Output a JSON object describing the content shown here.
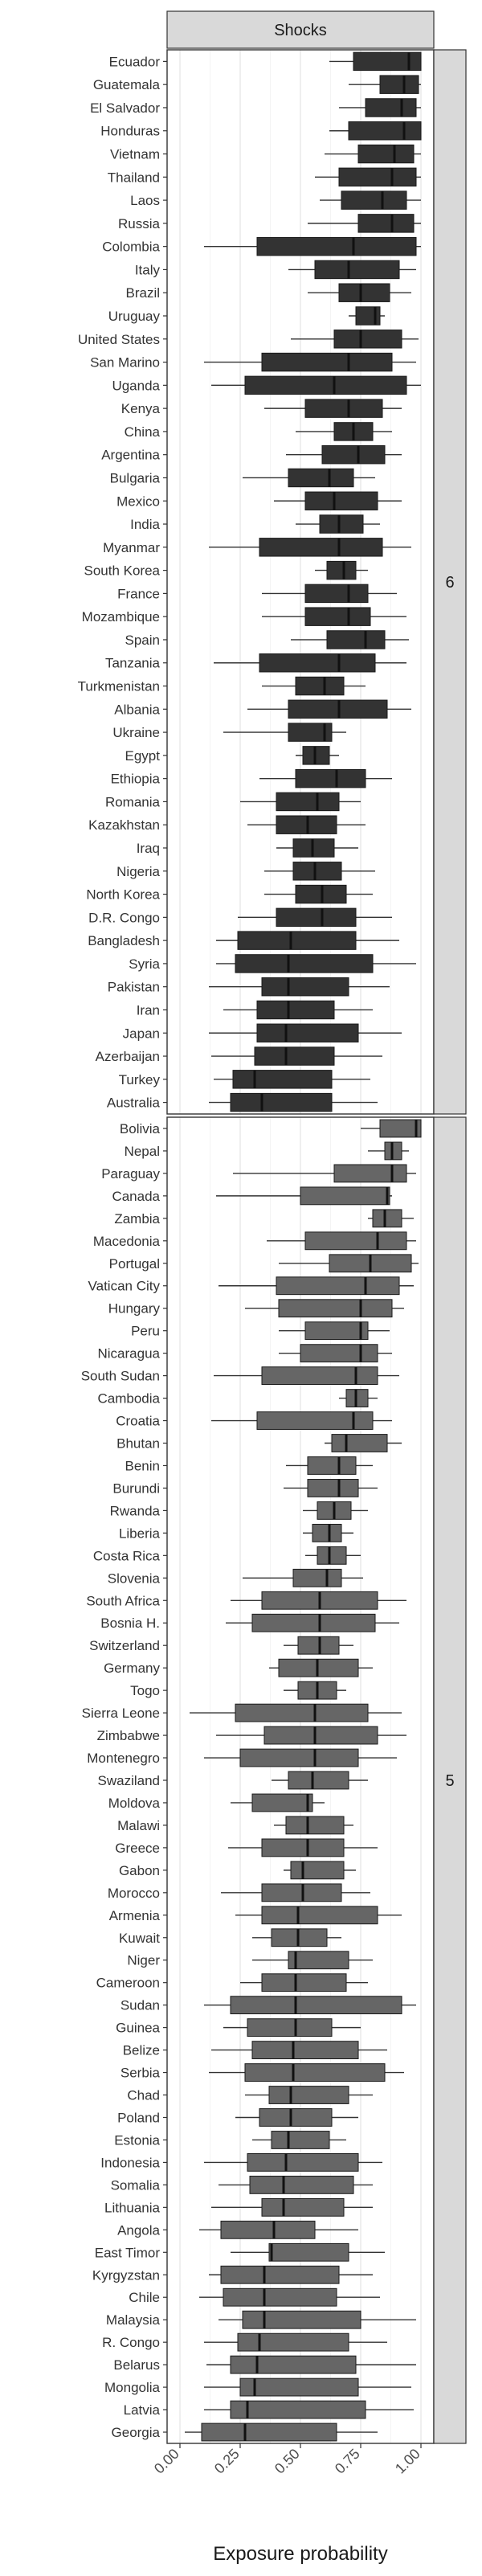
{
  "chart_data": {
    "type": "boxplot",
    "title": "",
    "facet_top_label": "Shocks",
    "xlabel": "Exposure probability",
    "ylabel": "",
    "xlim": [
      0,
      1
    ],
    "x_ticks": [
      "0.00",
      "0.25",
      "0.50",
      "0.75",
      "1.00"
    ],
    "grid": true,
    "colors": {
      "box_fill_group6": "#333333",
      "box_fill_group5": "#666666",
      "median": "#111111",
      "strip": "#d9d9d9",
      "grid": "#ebebeb"
    },
    "panels": [
      {
        "label": "6",
        "countries": [
          {
            "name": "Ecuador",
            "min": 0.62,
            "q1": 0.72,
            "median": 0.95,
            "q3": 1.0,
            "max": 1.0
          },
          {
            "name": "Guatemala",
            "min": 0.7,
            "q1": 0.83,
            "median": 0.93,
            "q3": 0.99,
            "max": 1.0
          },
          {
            "name": "El Salvador",
            "min": 0.66,
            "q1": 0.77,
            "median": 0.92,
            "q3": 0.98,
            "max": 1.0
          },
          {
            "name": "Honduras",
            "min": 0.62,
            "q1": 0.7,
            "median": 0.93,
            "q3": 1.0,
            "max": 1.0
          },
          {
            "name": "Vietnam",
            "min": 0.6,
            "q1": 0.74,
            "median": 0.89,
            "q3": 0.97,
            "max": 1.0
          },
          {
            "name": "Thailand",
            "min": 0.56,
            "q1": 0.66,
            "median": 0.88,
            "q3": 0.98,
            "max": 1.0
          },
          {
            "name": "Laos",
            "min": 0.58,
            "q1": 0.67,
            "median": 0.84,
            "q3": 0.94,
            "max": 1.0
          },
          {
            "name": "Russia",
            "min": 0.53,
            "q1": 0.74,
            "median": 0.88,
            "q3": 0.97,
            "max": 1.0
          },
          {
            "name": "Colombia",
            "min": 0.1,
            "q1": 0.32,
            "median": 0.72,
            "q3": 0.98,
            "max": 1.0
          },
          {
            "name": "Italy",
            "min": 0.45,
            "q1": 0.56,
            "median": 0.7,
            "q3": 0.91,
            "max": 0.98
          },
          {
            "name": "Brazil",
            "min": 0.53,
            "q1": 0.66,
            "median": 0.75,
            "q3": 0.87,
            "max": 0.96
          },
          {
            "name": "Uruguay",
            "min": 0.7,
            "q1": 0.73,
            "median": 0.81,
            "q3": 0.83,
            "max": 0.85
          },
          {
            "name": "United States",
            "min": 0.46,
            "q1": 0.64,
            "median": 0.75,
            "q3": 0.92,
            "max": 0.99
          },
          {
            "name": "San Marino",
            "min": 0.1,
            "q1": 0.34,
            "median": 0.7,
            "q3": 0.88,
            "max": 0.98
          },
          {
            "name": "Uganda",
            "min": 0.13,
            "q1": 0.27,
            "median": 0.64,
            "q3": 0.94,
            "max": 1.0
          },
          {
            "name": "Kenya",
            "min": 0.35,
            "q1": 0.52,
            "median": 0.7,
            "q3": 0.84,
            "max": 0.92
          },
          {
            "name": "China",
            "min": 0.48,
            "q1": 0.64,
            "median": 0.72,
            "q3": 0.8,
            "max": 0.88
          },
          {
            "name": "Argentina",
            "min": 0.44,
            "q1": 0.59,
            "median": 0.74,
            "q3": 0.85,
            "max": 0.92
          },
          {
            "name": "Bulgaria",
            "min": 0.26,
            "q1": 0.45,
            "median": 0.62,
            "q3": 0.72,
            "max": 0.81
          },
          {
            "name": "Mexico",
            "min": 0.39,
            "q1": 0.52,
            "median": 0.64,
            "q3": 0.82,
            "max": 0.92
          },
          {
            "name": "India",
            "min": 0.48,
            "q1": 0.58,
            "median": 0.66,
            "q3": 0.76,
            "max": 0.83
          },
          {
            "name": "Myanmar",
            "min": 0.12,
            "q1": 0.33,
            "median": 0.66,
            "q3": 0.84,
            "max": 0.96
          },
          {
            "name": "South Korea",
            "min": 0.56,
            "q1": 0.61,
            "median": 0.68,
            "q3": 0.73,
            "max": 0.78
          },
          {
            "name": "France",
            "min": 0.34,
            "q1": 0.52,
            "median": 0.7,
            "q3": 0.78,
            "max": 0.9
          },
          {
            "name": "Mozambique",
            "min": 0.34,
            "q1": 0.52,
            "median": 0.7,
            "q3": 0.79,
            "max": 0.94
          },
          {
            "name": "Spain",
            "min": 0.46,
            "q1": 0.61,
            "median": 0.77,
            "q3": 0.85,
            "max": 0.95
          },
          {
            "name": "Tanzania",
            "min": 0.14,
            "q1": 0.33,
            "median": 0.66,
            "q3": 0.81,
            "max": 0.94
          },
          {
            "name": "Turkmenistan",
            "min": 0.34,
            "q1": 0.48,
            "median": 0.6,
            "q3": 0.68,
            "max": 0.77
          },
          {
            "name": "Albania",
            "min": 0.28,
            "q1": 0.45,
            "median": 0.66,
            "q3": 0.86,
            "max": 0.96
          },
          {
            "name": "Ukraine",
            "min": 0.18,
            "q1": 0.45,
            "median": 0.6,
            "q3": 0.63,
            "max": 0.69
          },
          {
            "name": "Egypt",
            "min": 0.48,
            "q1": 0.51,
            "median": 0.56,
            "q3": 0.62,
            "max": 0.66
          },
          {
            "name": "Ethiopia",
            "min": 0.33,
            "q1": 0.48,
            "median": 0.65,
            "q3": 0.77,
            "max": 0.88
          },
          {
            "name": "Romania",
            "min": 0.25,
            "q1": 0.4,
            "median": 0.57,
            "q3": 0.66,
            "max": 0.75
          },
          {
            "name": "Kazakhstan",
            "min": 0.28,
            "q1": 0.4,
            "median": 0.53,
            "q3": 0.65,
            "max": 0.77
          },
          {
            "name": "Iraq",
            "min": 0.4,
            "q1": 0.47,
            "median": 0.55,
            "q3": 0.64,
            "max": 0.74
          },
          {
            "name": "Nigeria",
            "min": 0.35,
            "q1": 0.47,
            "median": 0.56,
            "q3": 0.67,
            "max": 0.81
          },
          {
            "name": "North Korea",
            "min": 0.35,
            "q1": 0.48,
            "median": 0.59,
            "q3": 0.69,
            "max": 0.8
          },
          {
            "name": "D.R. Congo",
            "min": 0.24,
            "q1": 0.4,
            "median": 0.59,
            "q3": 0.73,
            "max": 0.88
          },
          {
            "name": "Bangladesh",
            "min": 0.15,
            "q1": 0.24,
            "median": 0.46,
            "q3": 0.73,
            "max": 0.91
          },
          {
            "name": "Syria",
            "min": 0.15,
            "q1": 0.23,
            "median": 0.45,
            "q3": 0.8,
            "max": 0.98
          },
          {
            "name": "Pakistan",
            "min": 0.12,
            "q1": 0.34,
            "median": 0.45,
            "q3": 0.7,
            "max": 0.87
          },
          {
            "name": "Iran",
            "min": 0.18,
            "q1": 0.32,
            "median": 0.45,
            "q3": 0.64,
            "max": 0.8
          },
          {
            "name": "Japan",
            "min": 0.12,
            "q1": 0.32,
            "median": 0.44,
            "q3": 0.74,
            "max": 0.92
          },
          {
            "name": "Azerbaijan",
            "min": 0.13,
            "q1": 0.31,
            "median": 0.44,
            "q3": 0.64,
            "max": 0.84
          },
          {
            "name": "Turkey",
            "min": 0.14,
            "q1": 0.22,
            "median": 0.31,
            "q3": 0.63,
            "max": 0.79
          },
          {
            "name": "Australia",
            "min": 0.12,
            "q1": 0.21,
            "median": 0.34,
            "q3": 0.63,
            "max": 0.82
          }
        ]
      },
      {
        "label": "5",
        "countries": [
          {
            "name": "Bolivia",
            "min": 0.75,
            "q1": 0.83,
            "median": 0.98,
            "q3": 1.0,
            "max": 1.0
          },
          {
            "name": "Nepal",
            "min": 0.78,
            "q1": 0.85,
            "median": 0.88,
            "q3": 0.92,
            "max": 0.95
          },
          {
            "name": "Paraguay",
            "min": 0.22,
            "q1": 0.64,
            "median": 0.88,
            "q3": 0.94,
            "max": 0.98
          },
          {
            "name": "Canada",
            "min": 0.15,
            "q1": 0.5,
            "median": 0.86,
            "q3": 0.87,
            "max": 0.88
          },
          {
            "name": "Zambia",
            "min": 0.78,
            "q1": 0.8,
            "median": 0.85,
            "q3": 0.92,
            "max": 0.97
          },
          {
            "name": "Macedonia",
            "min": 0.36,
            "q1": 0.52,
            "median": 0.82,
            "q3": 0.94,
            "max": 0.98
          },
          {
            "name": "Portugal",
            "min": 0.41,
            "q1": 0.62,
            "median": 0.79,
            "q3": 0.96,
            "max": 0.99
          },
          {
            "name": "Vatican City",
            "min": 0.16,
            "q1": 0.4,
            "median": 0.77,
            "q3": 0.91,
            "max": 0.97
          },
          {
            "name": "Hungary",
            "min": 0.27,
            "q1": 0.41,
            "median": 0.75,
            "q3": 0.88,
            "max": 0.93
          },
          {
            "name": "Peru",
            "min": 0.41,
            "q1": 0.52,
            "median": 0.75,
            "q3": 0.78,
            "max": 0.87
          },
          {
            "name": "Nicaragua",
            "min": 0.41,
            "q1": 0.5,
            "median": 0.75,
            "q3": 0.82,
            "max": 0.88
          },
          {
            "name": "South Sudan",
            "min": 0.14,
            "q1": 0.34,
            "median": 0.73,
            "q3": 0.82,
            "max": 0.91
          },
          {
            "name": "Cambodia",
            "min": 0.66,
            "q1": 0.69,
            "median": 0.73,
            "q3": 0.78,
            "max": 0.82
          },
          {
            "name": "Croatia",
            "min": 0.13,
            "q1": 0.32,
            "median": 0.72,
            "q3": 0.8,
            "max": 0.88
          },
          {
            "name": "Bhutan",
            "min": 0.6,
            "q1": 0.63,
            "median": 0.69,
            "q3": 0.86,
            "max": 0.92
          },
          {
            "name": "Benin",
            "min": 0.44,
            "q1": 0.53,
            "median": 0.66,
            "q3": 0.73,
            "max": 0.8
          },
          {
            "name": "Burundi",
            "min": 0.43,
            "q1": 0.53,
            "median": 0.66,
            "q3": 0.74,
            "max": 0.82
          },
          {
            "name": "Rwanda",
            "min": 0.51,
            "q1": 0.57,
            "median": 0.64,
            "q3": 0.71,
            "max": 0.78
          },
          {
            "name": "Liberia",
            "min": 0.51,
            "q1": 0.55,
            "median": 0.62,
            "q3": 0.67,
            "max": 0.72
          },
          {
            "name": "Costa Rica",
            "min": 0.52,
            "q1": 0.57,
            "median": 0.62,
            "q3": 0.69,
            "max": 0.75
          },
          {
            "name": "Slovenia",
            "min": 0.26,
            "q1": 0.47,
            "median": 0.61,
            "q3": 0.67,
            "max": 0.76
          },
          {
            "name": "South Africa",
            "min": 0.21,
            "q1": 0.34,
            "median": 0.58,
            "q3": 0.82,
            "max": 0.94
          },
          {
            "name": "Bosnia H.",
            "min": 0.19,
            "q1": 0.3,
            "median": 0.58,
            "q3": 0.81,
            "max": 0.91
          },
          {
            "name": "Switzerland",
            "min": 0.43,
            "q1": 0.49,
            "median": 0.58,
            "q3": 0.66,
            "max": 0.72
          },
          {
            "name": "Germany",
            "min": 0.37,
            "q1": 0.41,
            "median": 0.57,
            "q3": 0.74,
            "max": 0.8
          },
          {
            "name": "Togo",
            "min": 0.43,
            "q1": 0.49,
            "median": 0.57,
            "q3": 0.65,
            "max": 0.69
          },
          {
            "name": "Sierra Leone",
            "min": 0.04,
            "q1": 0.23,
            "median": 0.56,
            "q3": 0.78,
            "max": 0.92
          },
          {
            "name": "Zimbabwe",
            "min": 0.15,
            "q1": 0.35,
            "median": 0.56,
            "q3": 0.82,
            "max": 0.94
          },
          {
            "name": "Montenegro",
            "min": 0.1,
            "q1": 0.25,
            "median": 0.56,
            "q3": 0.74,
            "max": 0.9
          },
          {
            "name": "Swaziland",
            "min": 0.38,
            "q1": 0.45,
            "median": 0.55,
            "q3": 0.7,
            "max": 0.78
          },
          {
            "name": "Moldova",
            "min": 0.21,
            "q1": 0.3,
            "median": 0.53,
            "q3": 0.55,
            "max": 0.6
          },
          {
            "name": "Malawi",
            "min": 0.39,
            "q1": 0.44,
            "median": 0.53,
            "q3": 0.68,
            "max": 0.72
          },
          {
            "name": "Greece",
            "min": 0.2,
            "q1": 0.34,
            "median": 0.53,
            "q3": 0.68,
            "max": 0.82
          },
          {
            "name": "Gabon",
            "min": 0.43,
            "q1": 0.46,
            "median": 0.51,
            "q3": 0.68,
            "max": 0.73
          },
          {
            "name": "Morocco",
            "min": 0.17,
            "q1": 0.34,
            "median": 0.51,
            "q3": 0.67,
            "max": 0.79
          },
          {
            "name": "Armenia",
            "min": 0.23,
            "q1": 0.34,
            "median": 0.49,
            "q3": 0.82,
            "max": 0.92
          },
          {
            "name": "Kuwait",
            "min": 0.3,
            "q1": 0.38,
            "median": 0.49,
            "q3": 0.61,
            "max": 0.67
          },
          {
            "name": "Niger",
            "min": 0.3,
            "q1": 0.45,
            "median": 0.48,
            "q3": 0.7,
            "max": 0.8
          },
          {
            "name": "Cameroon",
            "min": 0.25,
            "q1": 0.34,
            "median": 0.48,
            "q3": 0.69,
            "max": 0.78
          },
          {
            "name": "Sudan",
            "min": 0.1,
            "q1": 0.21,
            "median": 0.48,
            "q3": 0.92,
            "max": 0.98
          },
          {
            "name": "Guinea",
            "min": 0.18,
            "q1": 0.28,
            "median": 0.48,
            "q3": 0.63,
            "max": 0.75
          },
          {
            "name": "Belize",
            "min": 0.13,
            "q1": 0.3,
            "median": 0.47,
            "q3": 0.74,
            "max": 0.86
          },
          {
            "name": "Serbia",
            "min": 0.12,
            "q1": 0.27,
            "median": 0.47,
            "q3": 0.85,
            "max": 0.93
          },
          {
            "name": "Chad",
            "min": 0.27,
            "q1": 0.37,
            "median": 0.46,
            "q3": 0.7,
            "max": 0.8
          },
          {
            "name": "Poland",
            "min": 0.23,
            "q1": 0.33,
            "median": 0.46,
            "q3": 0.63,
            "max": 0.74
          },
          {
            "name": "Estonia",
            "min": 0.3,
            "q1": 0.38,
            "median": 0.45,
            "q3": 0.62,
            "max": 0.69
          },
          {
            "name": "Indonesia",
            "min": 0.1,
            "q1": 0.28,
            "median": 0.44,
            "q3": 0.74,
            "max": 0.84
          },
          {
            "name": "Somalia",
            "min": 0.16,
            "q1": 0.29,
            "median": 0.43,
            "q3": 0.72,
            "max": 0.8
          },
          {
            "name": "Lithuania",
            "min": 0.13,
            "q1": 0.34,
            "median": 0.43,
            "q3": 0.68,
            "max": 0.8
          },
          {
            "name": "Angola",
            "min": 0.08,
            "q1": 0.17,
            "median": 0.39,
            "q3": 0.56,
            "max": 0.74
          },
          {
            "name": "East Timor",
            "min": 0.21,
            "q1": 0.37,
            "median": 0.38,
            "q3": 0.7,
            "max": 0.85
          },
          {
            "name": "Kyrgyzstan",
            "min": 0.12,
            "q1": 0.17,
            "median": 0.35,
            "q3": 0.66,
            "max": 0.8
          },
          {
            "name": "Chile",
            "min": 0.08,
            "q1": 0.18,
            "median": 0.35,
            "q3": 0.65,
            "max": 0.83
          },
          {
            "name": "Malaysia",
            "min": 0.16,
            "q1": 0.26,
            "median": 0.35,
            "q3": 0.75,
            "max": 0.98
          },
          {
            "name": "R. Congo",
            "min": 0.1,
            "q1": 0.24,
            "median": 0.33,
            "q3": 0.7,
            "max": 0.86
          },
          {
            "name": "Belarus",
            "min": 0.11,
            "q1": 0.21,
            "median": 0.32,
            "q3": 0.73,
            "max": 0.98
          },
          {
            "name": "Mongolia",
            "min": 0.1,
            "q1": 0.25,
            "median": 0.31,
            "q3": 0.74,
            "max": 0.96
          },
          {
            "name": "Latvia",
            "min": 0.1,
            "q1": 0.21,
            "median": 0.28,
            "q3": 0.77,
            "max": 0.97
          },
          {
            "name": "Georgia",
            "min": 0.02,
            "q1": 0.09,
            "median": 0.27,
            "q3": 0.65,
            "max": 0.82
          }
        ]
      }
    ]
  }
}
